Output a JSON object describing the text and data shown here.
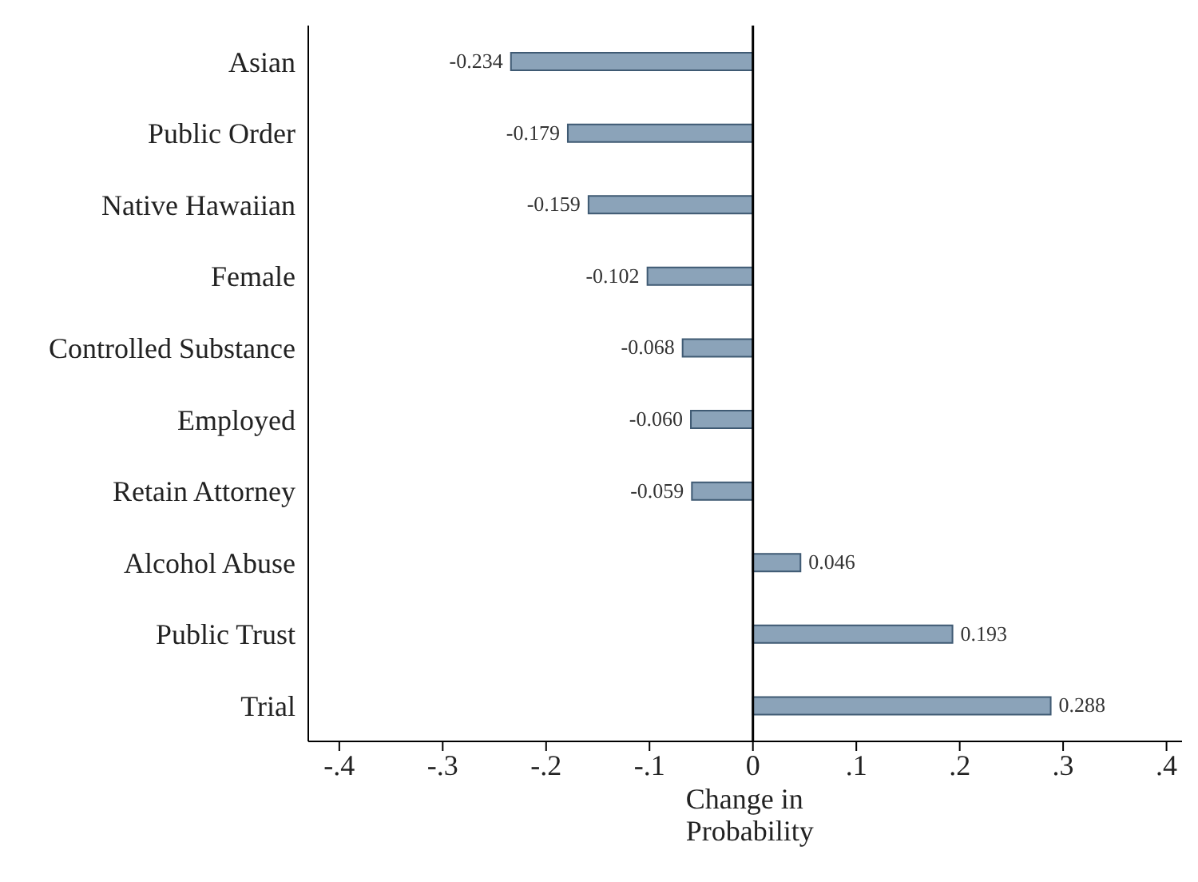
{
  "chart_data": {
    "type": "bar",
    "orientation": "horizontal",
    "xlabel": "Change in\nProbability",
    "categories": [
      "Asian",
      "Public Order",
      "Native Hawaiian",
      "Female",
      "Controlled Substance",
      "Employed",
      "Retain Attorney",
      "Alcohol Abuse",
      "Public Trust",
      "Trial"
    ],
    "values": [
      -0.234,
      -0.179,
      -0.159,
      -0.102,
      -0.068,
      -0.06,
      -0.059,
      0.046,
      0.193,
      0.288
    ],
    "value_labels": [
      "-0.234",
      "-0.179",
      "-0.159",
      "-0.102",
      "-0.068",
      "-0.060",
      "-0.059",
      "0.046",
      "0.193",
      "0.288"
    ],
    "color": "#8ba3b9",
    "xlim": [
      -0.43,
      0.415
    ],
    "xticks": [
      {
        "value": -0.4,
        "label": "-.4"
      },
      {
        "value": -0.3,
        "label": "-.3"
      },
      {
        "value": -0.2,
        "label": "-.2"
      },
      {
        "value": -0.1,
        "label": "-.1"
      },
      0,
      {
        "value": 0.1,
        "label": ".1"
      },
      {
        "value": 0.2,
        "label": ".2"
      },
      {
        "value": 0.3,
        "label": ".3"
      },
      {
        "value": 0.4,
        "label": ".4"
      }
    ],
    "ref_lines": [
      {
        "axis": "x",
        "value": 0,
        "color": "#000000"
      }
    ],
    "grid": false,
    "legend": false
  }
}
